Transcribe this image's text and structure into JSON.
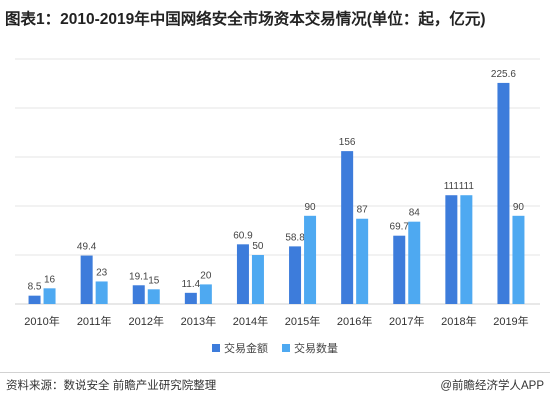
{
  "chart_data": {
    "type": "bar",
    "title": "图表1：2010-2019年中国网络安全市场资本交易情况(单位：起，亿元)",
    "xlabel": "",
    "ylabel": "",
    "categories": [
      "2010年",
      "2011年",
      "2012年",
      "2013年",
      "2014年",
      "2015年",
      "2016年",
      "2017年",
      "2018年",
      "2019年"
    ],
    "series": [
      {
        "name": "交易金额",
        "color": "#3d7cdb",
        "values": [
          8.5,
          49.4,
          19.1,
          11.4,
          60.9,
          58.8,
          156,
          69.7,
          111,
          225.6
        ]
      },
      {
        "name": "交易数量",
        "color": "#4ea9f1",
        "values": [
          16,
          23,
          15,
          20,
          50,
          90,
          87,
          84,
          111,
          90
        ]
      }
    ],
    "ylim": [
      0,
      250
    ],
    "ytick_step": 50,
    "grid": true,
    "legend": "bottom-center"
  },
  "footer": {
    "source": "资料来源：数说安全 前瞻产业研究院整理",
    "credit": "@前瞻经济学人APP"
  }
}
